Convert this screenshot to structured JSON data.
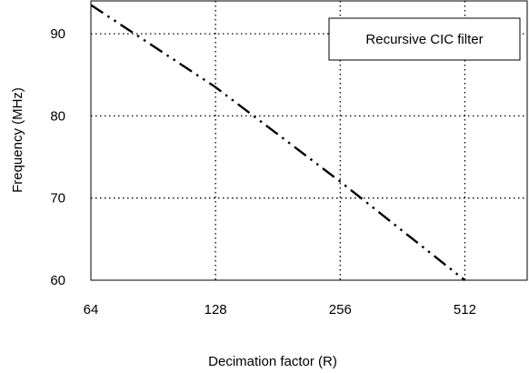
{
  "chart_data": {
    "type": "line",
    "x_scale": "log2",
    "xlabel": "Decimation factor (R)",
    "ylabel": "Frequency (MHz)",
    "xlim": [
      64,
      724
    ],
    "ylim": [
      60,
      94
    ],
    "x_ticks": [
      64,
      128,
      256,
      512
    ],
    "x_tick_labels": [
      "64",
      "128",
      "256",
      "512"
    ],
    "y_ticks": [
      60,
      70,
      80,
      90
    ],
    "y_tick_labels": [
      "60",
      "70",
      "80",
      "90"
    ],
    "grid": true,
    "legend_position": "top-right",
    "series": [
      {
        "name": "Recursive CIC filter",
        "line_style": "dash-dot-dot",
        "color": "#000000",
        "x": [
          64,
          128,
          256,
          512
        ],
        "y": [
          93.5,
          83.5,
          72.0,
          60.0
        ]
      }
    ]
  }
}
